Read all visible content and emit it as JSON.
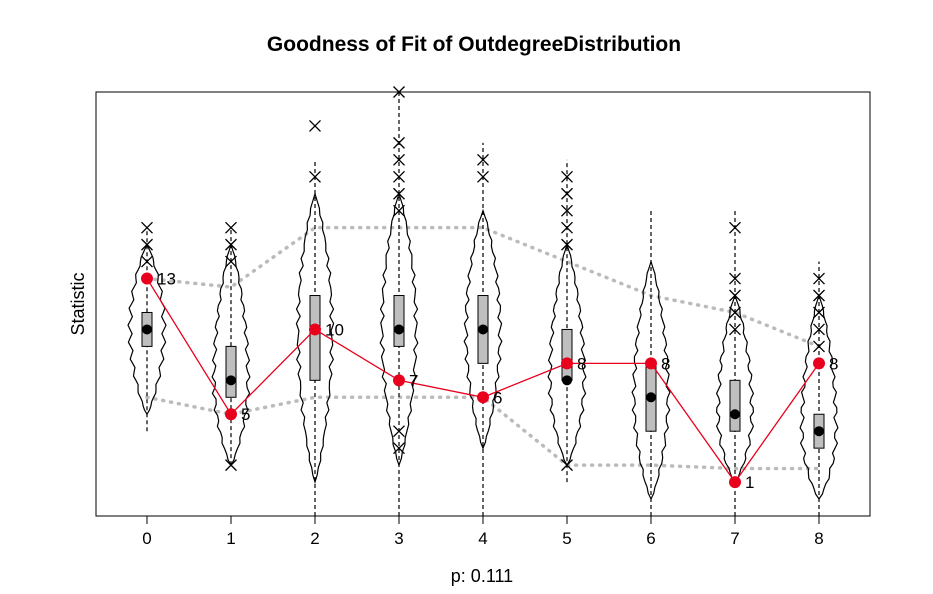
{
  "chart_data": {
    "type": "violin",
    "title": "Goodness of Fit of OutdegreeDistribution",
    "xlabel": "p: 0.111",
    "ylabel": "Statistic",
    "categories": [
      "0",
      "1",
      "2",
      "3",
      "4",
      "5",
      "6",
      "7",
      "8"
    ],
    "ylim": [
      -1,
      24
    ],
    "grid": false,
    "legend": "none",
    "colors": {
      "observed": "#e8001c",
      "band": "#bbbbbb",
      "box": "#bfbfbf",
      "outline": "#000000"
    },
    "observed": {
      "name": "",
      "values": [
        13,
        5,
        10,
        7,
        6,
        8,
        8,
        1,
        8
      ]
    },
    "observed_labels": [
      "13",
      "5",
      "10",
      "7",
      "6",
      "8",
      "8",
      "1",
      "8"
    ],
    "median": [
      10,
      7,
      10,
      10,
      10,
      7,
      6,
      5,
      4
    ],
    "box": [
      {
        "q1": 9,
        "q3": 11
      },
      {
        "q1": 6,
        "q3": 9
      },
      {
        "q1": 7,
        "q3": 12
      },
      {
        "q1": 9,
        "q3": 12
      },
      {
        "q1": 8,
        "q3": 12
      },
      {
        "q1": 7,
        "q3": 10
      },
      {
        "q1": 4,
        "q3": 8
      },
      {
        "q1": 4,
        "q3": 7
      },
      {
        "q1": 3,
        "q3": 5
      }
    ],
    "whiskers": [
      {
        "low": 4,
        "high": 16
      },
      {
        "low": 2,
        "high": 16
      },
      {
        "low": -1,
        "high": 20
      },
      {
        "low": -1,
        "high": 24
      },
      {
        "low": -1,
        "high": 21
      },
      {
        "low": 1,
        "high": 20
      },
      {
        "low": -1,
        "high": 17
      },
      {
        "low": -1,
        "high": 17
      },
      {
        "low": -1,
        "high": 14
      }
    ],
    "violin_extent": [
      {
        "low": 5,
        "high": 15
      },
      {
        "low": 2,
        "high": 15
      },
      {
        "low": 1,
        "high": 18
      },
      {
        "low": 2,
        "high": 18
      },
      {
        "low": 3,
        "high": 17
      },
      {
        "low": 2,
        "high": 15
      },
      {
        "low": 0,
        "high": 14
      },
      {
        "low": 1,
        "high": 12
      },
      {
        "low": 0,
        "high": 12
      }
    ],
    "outliers": [
      [
        14,
        15,
        16
      ],
      [
        2,
        14,
        15,
        16
      ],
      [
        19,
        22
      ],
      [
        3,
        4,
        17,
        18,
        19,
        20,
        21,
        24
      ],
      [
        19,
        20
      ],
      [
        2,
        15,
        16,
        17,
        18,
        19
      ],
      [],
      [
        10,
        11,
        12,
        13,
        16
      ],
      [
        9,
        10,
        11,
        12,
        13
      ]
    ],
    "band_upper": [
      13,
      12.5,
      16,
      16,
      16,
      14,
      12,
      11,
      9
    ],
    "band_lower": [
      6,
      5,
      6,
      6,
      6,
      2,
      2,
      1.8,
      1.8
    ]
  }
}
